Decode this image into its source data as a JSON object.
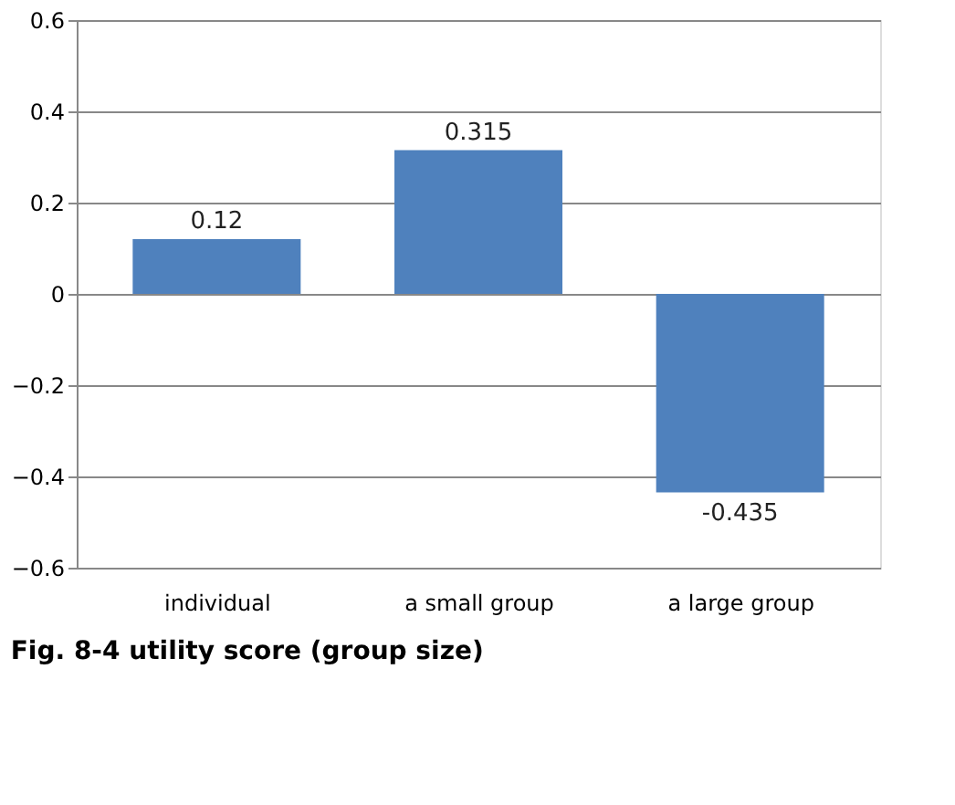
{
  "chart_data": {
    "type": "bar",
    "title": "Fig. 8-4 utility score (group size)",
    "categories": [
      "individual",
      "a small group",
      "a large group"
    ],
    "values": [
      0.12,
      0.315,
      -0.435
    ],
    "color": "#4f81bd",
    "ylim": [
      -0.6,
      0.6
    ],
    "yticks": [
      -0.6,
      -0.4,
      -0.2,
      0,
      0.2,
      0.4,
      0.6
    ],
    "grid": "y",
    "data_labels": true
  }
}
